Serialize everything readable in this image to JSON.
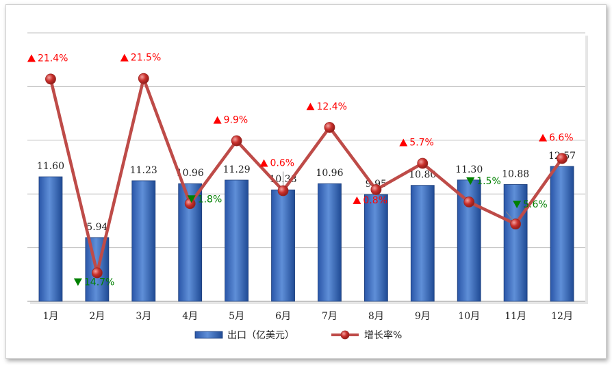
{
  "chart_data": {
    "type": "bar",
    "categories": [
      "1月",
      "2月",
      "3月",
      "4月",
      "5月",
      "6月",
      "7月",
      "8月",
      "9月",
      "10月",
      "11月",
      "12月"
    ],
    "series": [
      {
        "name": "出口（亿美元）",
        "type": "bar",
        "values": [
          11.6,
          5.94,
          11.23,
          10.96,
          11.29,
          10.38,
          10.96,
          9.95,
          10.8,
          11.3,
          10.88,
          12.57
        ],
        "labels": [
          "11.60",
          "5.94",
          "11.23",
          "10.96",
          "11.29",
          "10.38",
          "10.96",
          "9.95",
          "10.80",
          "11.30",
          "10.88",
          "12.57"
        ],
        "color": "#4472c4"
      },
      {
        "name": "增长率%",
        "type": "line",
        "values": [
          21.4,
          -14.7,
          21.5,
          -1.8,
          9.9,
          0.6,
          12.4,
          0.8,
          5.7,
          -1.5,
          -5.6,
          6.6
        ],
        "labels": [
          "21.4%",
          "14.7%",
          "21.5%",
          "1.8%",
          "9.9%",
          "0.6%",
          "12.4%",
          "0.8%",
          "5.7%",
          "1.5%",
          "5.6%",
          "6.6%"
        ],
        "color": "#c0504d"
      }
    ],
    "grid": true,
    "legend": "bottom",
    "up_color": "#ff0000",
    "down_color": "#008000"
  }
}
